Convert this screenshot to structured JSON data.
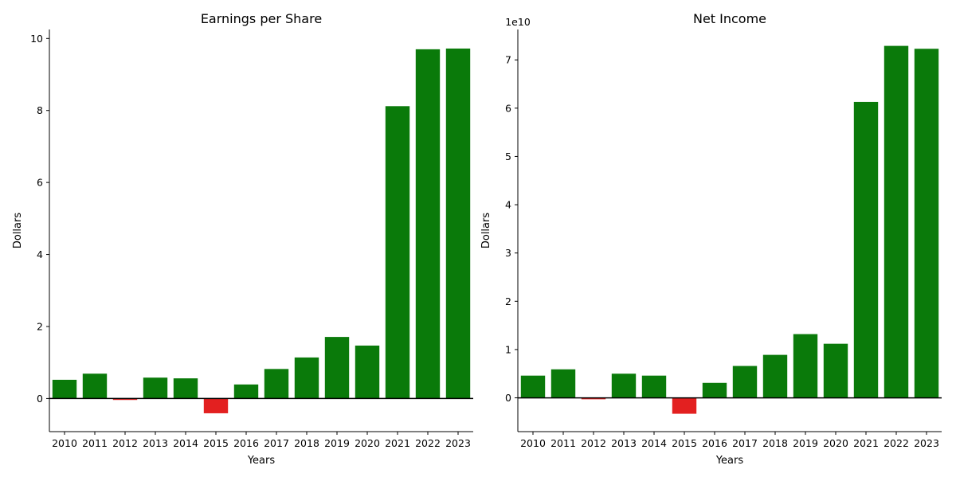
{
  "chart_data": [
    {
      "type": "bar",
      "title": "Earnings per Share",
      "xlabel": "Years",
      "ylabel": "Dollars",
      "offset_text": "",
      "categories": [
        "2010",
        "2011",
        "2012",
        "2013",
        "2014",
        "2015",
        "2016",
        "2017",
        "2018",
        "2019",
        "2020",
        "2021",
        "2022",
        "2023"
      ],
      "values": [
        0.52,
        0.69,
        -0.04,
        0.58,
        0.56,
        -0.41,
        0.39,
        0.82,
        1.14,
        1.71,
        1.47,
        8.12,
        9.7,
        9.72
      ],
      "ylim": [
        -0.92,
        10.25
      ],
      "yticks": [
        0,
        2,
        4,
        6,
        8,
        10
      ],
      "grid": false,
      "positive_color": "#0a7a0a",
      "negative_color": "#e32020"
    },
    {
      "type": "bar",
      "title": "Net Income",
      "xlabel": "Years",
      "ylabel": "Dollars",
      "offset_text": "1e10",
      "categories": [
        "2010",
        "2011",
        "2012",
        "2013",
        "2014",
        "2015",
        "2016",
        "2017",
        "2018",
        "2019",
        "2020",
        "2021",
        "2022",
        "2023"
      ],
      "values": [
        4600000000.0,
        5900000000.0,
        -300000000.0,
        5000000000.0,
        4600000000.0,
        -3300000000.0,
        3100000000.0,
        6600000000.0,
        8900000000.0,
        13200000000.0,
        11200000000.0,
        61300000000.0,
        72900000000.0,
        72300000000.0
      ],
      "ylim": [
        -7000000000.0,
        76300000000.0
      ],
      "yticks": [
        0,
        10000000000.0,
        20000000000.0,
        30000000000.0,
        40000000000.0,
        50000000000.0,
        60000000000.0,
        70000000000.0
      ],
      "ytick_labels": [
        "0",
        "1",
        "2",
        "3",
        "4",
        "5",
        "6",
        "7"
      ],
      "grid": false,
      "positive_color": "#0a7a0a",
      "negative_color": "#e32020"
    }
  ]
}
